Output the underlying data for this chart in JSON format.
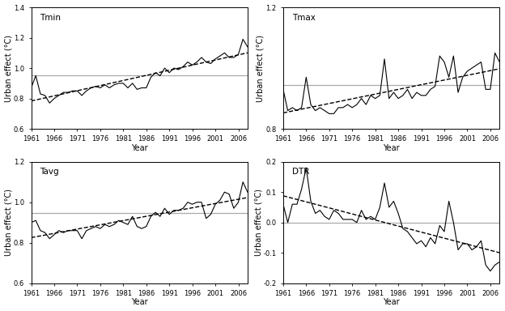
{
  "years": [
    1961,
    1962,
    1963,
    1964,
    1965,
    1966,
    1967,
    1968,
    1969,
    1970,
    1971,
    1972,
    1973,
    1974,
    1975,
    1976,
    1977,
    1978,
    1979,
    1980,
    1981,
    1982,
    1983,
    1984,
    1985,
    1986,
    1987,
    1988,
    1989,
    1990,
    1991,
    1992,
    1993,
    1994,
    1995,
    1996,
    1997,
    1998,
    1999,
    2000,
    2001,
    2002,
    2003,
    2004,
    2005,
    2006,
    2007,
    2008
  ],
  "tmin": [
    0.87,
    0.95,
    0.83,
    0.82,
    0.77,
    0.8,
    0.82,
    0.84,
    0.84,
    0.85,
    0.85,
    0.82,
    0.85,
    0.87,
    0.88,
    0.87,
    0.89,
    0.87,
    0.89,
    0.9,
    0.9,
    0.87,
    0.9,
    0.86,
    0.87,
    0.87,
    0.94,
    0.97,
    0.95,
    1.0,
    0.97,
    1.0,
    0.99,
    1.01,
    1.04,
    1.02,
    1.04,
    1.07,
    1.04,
    1.03,
    1.06,
    1.08,
    1.1,
    1.07,
    1.07,
    1.09,
    1.19,
    1.14
  ],
  "tmax": [
    0.93,
    0.86,
    0.87,
    0.86,
    0.87,
    0.97,
    0.88,
    0.86,
    0.87,
    0.86,
    0.85,
    0.85,
    0.87,
    0.87,
    0.88,
    0.87,
    0.88,
    0.9,
    0.88,
    0.91,
    0.9,
    0.91,
    1.03,
    0.9,
    0.92,
    0.9,
    0.91,
    0.93,
    0.9,
    0.92,
    0.91,
    0.91,
    0.93,
    0.94,
    1.04,
    1.02,
    0.97,
    1.04,
    0.92,
    0.97,
    0.99,
    1.0,
    1.01,
    1.02,
    0.93,
    0.93,
    1.05,
    1.02
  ],
  "tavg": [
    0.9,
    0.91,
    0.86,
    0.85,
    0.82,
    0.84,
    0.86,
    0.85,
    0.86,
    0.86,
    0.86,
    0.82,
    0.86,
    0.87,
    0.88,
    0.87,
    0.89,
    0.88,
    0.89,
    0.91,
    0.9,
    0.89,
    0.93,
    0.88,
    0.87,
    0.88,
    0.93,
    0.95,
    0.93,
    0.97,
    0.94,
    0.96,
    0.96,
    0.97,
    1.0,
    0.99,
    1.0,
    1.0,
    0.92,
    0.94,
    0.99,
    1.01,
    1.05,
    1.04,
    0.97,
    1.0,
    1.1,
    1.05
  ],
  "dtr": [
    0.06,
    0.0,
    0.06,
    0.06,
    0.11,
    0.18,
    0.07,
    0.03,
    0.04,
    0.02,
    0.01,
    0.04,
    0.03,
    0.01,
    0.01,
    0.01,
    0.0,
    0.04,
    0.01,
    0.02,
    0.01,
    0.05,
    0.13,
    0.05,
    0.07,
    0.03,
    -0.02,
    -0.03,
    -0.05,
    -0.07,
    -0.06,
    -0.08,
    -0.05,
    -0.07,
    -0.01,
    -0.03,
    0.07,
    0.0,
    -0.09,
    -0.07,
    -0.07,
    -0.09,
    -0.08,
    -0.06,
    -0.14,
    -0.16,
    -0.14,
    -0.13
  ],
  "tmin_mean": 0.955,
  "tmax_mean": 0.945,
  "tavg_mean": 0.945,
  "dtr_mean": 0.0,
  "tmin_ylim": [
    0.6,
    1.4
  ],
  "tmax_ylim": [
    0.8,
    1.2
  ],
  "tavg_ylim": [
    0.6,
    1.2
  ],
  "dtr_ylim": [
    -0.2,
    0.2
  ],
  "tmin_yticks": [
    0.6,
    0.8,
    1.0,
    1.2,
    1.4
  ],
  "tmax_yticks": [
    0.8,
    1.2
  ],
  "tavg_yticks": [
    0.6,
    0.8,
    1.0,
    1.2
  ],
  "dtr_yticks": [
    -0.2,
    -0.1,
    0.0,
    0.1,
    0.2
  ],
  "xtick_years": [
    1961,
    1966,
    1971,
    1976,
    1981,
    1986,
    1991,
    1996,
    2001,
    2006
  ],
  "line_color": "#000000",
  "trend_color": "#000000",
  "mean_color": "#aaaaaa",
  "bg_color": "#ffffff",
  "text_color": "#000000",
  "xlabel": "Year",
  "ylabel": "Urban effect (°C)",
  "titles": [
    "Tmin",
    "Tmax",
    "Tavg",
    "DTR"
  ]
}
